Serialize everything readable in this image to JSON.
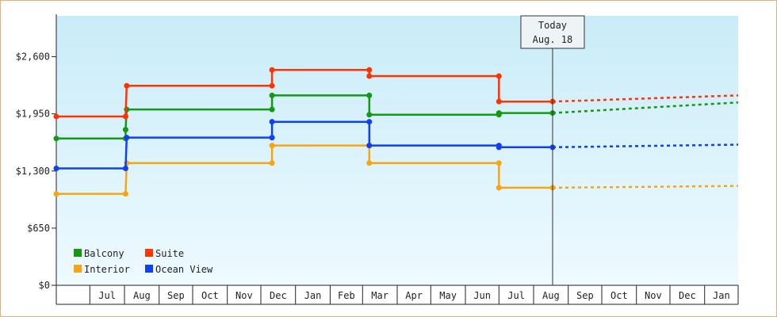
{
  "chart_data": {
    "type": "line",
    "step": true,
    "y_ticks": [
      0,
      650,
      1300,
      1950,
      2600
    ],
    "y_tick_labels": [
      "$0",
      "$650",
      "$1,300",
      "$1,950",
      "$2,600"
    ],
    "ylim": [
      0,
      3065
    ],
    "x_tick_labels": [
      "Jul",
      "Aug",
      "Sep",
      "Oct",
      "Nov",
      "Dec",
      "Jan",
      "Feb",
      "Mar",
      "Apr",
      "May",
      "Jun",
      "Jul",
      "Aug",
      "Sep",
      "Oct",
      "Nov",
      "Dec",
      "Jan"
    ],
    "today_marker": {
      "line1": "Today",
      "line2": "Aug. 18"
    },
    "grid": false,
    "legend_position": "bottom-left",
    "series": [
      {
        "name": "Balcony",
        "color": "#139a13",
        "points": [
          [
            "2023-06-01",
            1670
          ],
          [
            "2023-08-02",
            1670
          ],
          [
            "2023-08-02",
            1770
          ],
          [
            "2023-08-03",
            2000
          ],
          [
            "2023-12-11",
            2000
          ],
          [
            "2023-12-11",
            2160
          ],
          [
            "2024-03-07",
            2160
          ],
          [
            "2024-03-07",
            1940
          ],
          [
            "2024-07-01",
            1940
          ],
          [
            "2024-07-01",
            1960
          ],
          [
            "2024-08-18",
            1960
          ]
        ],
        "forecast": [
          [
            "2024-08-18",
            1960
          ],
          [
            "2025-01-31",
            2080
          ]
        ]
      },
      {
        "name": "Suite",
        "color": "#ff3300",
        "points": [
          [
            "2023-06-01",
            1920
          ],
          [
            "2023-08-02",
            1920
          ],
          [
            "2023-08-03",
            2270
          ],
          [
            "2023-12-11",
            2270
          ],
          [
            "2023-12-11",
            2450
          ],
          [
            "2024-03-07",
            2450
          ],
          [
            "2024-03-07",
            2380
          ],
          [
            "2024-07-01",
            2380
          ],
          [
            "2024-07-01",
            2090
          ],
          [
            "2024-08-18",
            2090
          ]
        ],
        "forecast": [
          [
            "2024-08-18",
            2090
          ],
          [
            "2025-01-31",
            2160
          ]
        ]
      },
      {
        "name": "Interior",
        "color": "#f7a513",
        "points": [
          [
            "2023-06-01",
            1040
          ],
          [
            "2023-08-02",
            1040
          ],
          [
            "2023-08-03",
            1390
          ],
          [
            "2023-12-11",
            1390
          ],
          [
            "2023-12-11",
            1590
          ],
          [
            "2024-03-07",
            1590
          ],
          [
            "2024-03-07",
            1390
          ],
          [
            "2024-07-01",
            1390
          ],
          [
            "2024-07-01",
            1110
          ],
          [
            "2024-08-18",
            1110
          ]
        ],
        "forecast": [
          [
            "2024-08-18",
            1110
          ],
          [
            "2025-01-31",
            1130
          ]
        ]
      },
      {
        "name": "Ocean View",
        "color": "#1040f0",
        "points": [
          [
            "2023-06-01",
            1330
          ],
          [
            "2023-08-02",
            1330
          ],
          [
            "2023-08-03",
            1680
          ],
          [
            "2023-12-11",
            1680
          ],
          [
            "2023-12-11",
            1860
          ],
          [
            "2024-03-07",
            1860
          ],
          [
            "2024-03-07",
            1590
          ],
          [
            "2024-07-01",
            1590
          ],
          [
            "2024-07-01",
            1570
          ],
          [
            "2024-08-18",
            1570
          ]
        ],
        "forecast": [
          [
            "2024-08-18",
            1570
          ],
          [
            "2025-01-31",
            1600
          ]
        ]
      }
    ],
    "x_start": "2023-06-01",
    "x_end": "2025-01-31",
    "today": "2024-08-18"
  }
}
